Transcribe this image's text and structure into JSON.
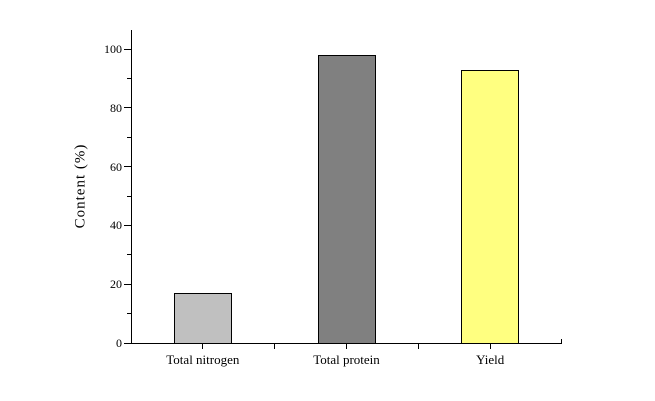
{
  "chart_data": {
    "type": "bar",
    "title": "",
    "categories": [
      "Total nitrogen",
      "Total protein",
      "Yield"
    ],
    "values": [
      17,
      98,
      93
    ],
    "bar_colors": [
      "#c0c0c0",
      "#808080",
      "#ffff80"
    ],
    "bar_border_color": "#000000",
    "xlabel": "",
    "ylabel": "Content (%)",
    "ylim": [
      0,
      106.5
    ],
    "yticks": [
      0,
      20,
      40,
      60,
      80,
      100
    ],
    "ytick_minor_step": 10,
    "grid": false,
    "legend": "none",
    "axis_color": "#000000",
    "text_color": "#000000",
    "background_color": "#ffffff"
  }
}
